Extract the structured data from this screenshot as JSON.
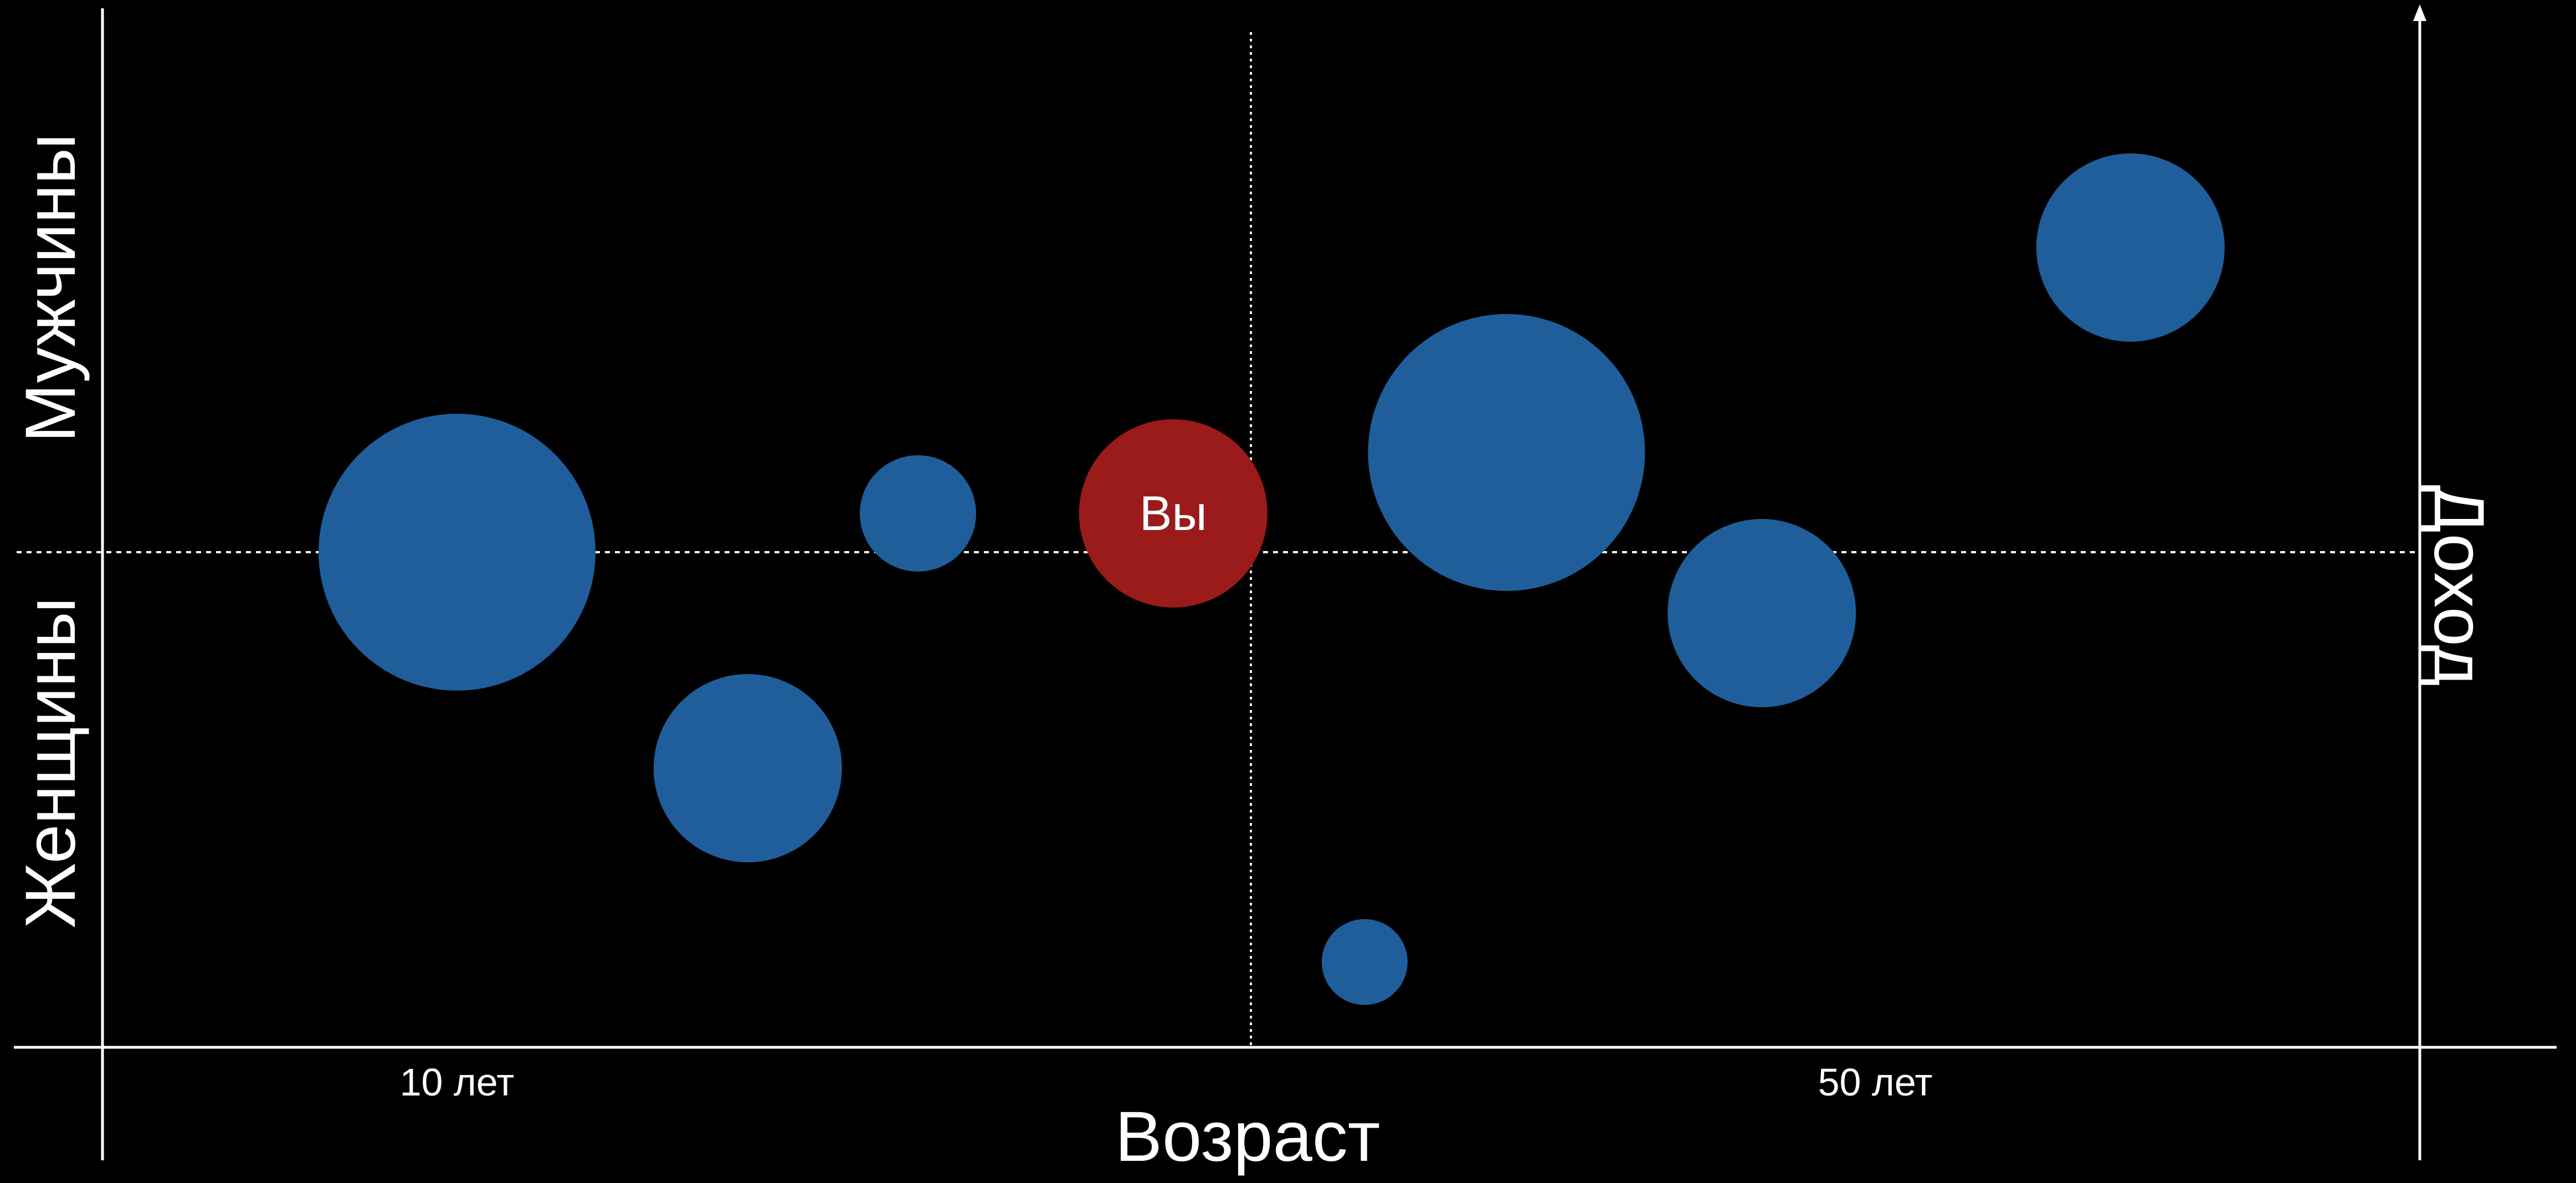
{
  "chart_data": {
    "type": "scatter",
    "title": "",
    "xlabel": "Возраст",
    "ylabel": "Доход",
    "left_upper_label": "Мужчины",
    "left_lower_label": "Женщины",
    "x_ticks": [
      {
        "value": 10,
        "label": "10 лет"
      },
      {
        "value": 50,
        "label": "50 лет"
      }
    ],
    "xlim": [
      0,
      54.5
    ],
    "points": [
      {
        "x": 10.0,
        "y": 0.0,
        "size": 1.0,
        "color": "#1f5e9a",
        "label": ""
      },
      {
        "x": 18.2,
        "y": -0.39,
        "size": 0.68,
        "color": "#1f5e9a",
        "label": ""
      },
      {
        "x": 23.0,
        "y": 0.07,
        "size": 0.42,
        "color": "#1f5e9a",
        "label": ""
      },
      {
        "x": 30.2,
        "y": 0.07,
        "size": 0.68,
        "color": "#9b1a1a",
        "label": "Вы"
      },
      {
        "x": 35.6,
        "y": -0.74,
        "size": 0.31,
        "color": "#1f5e9a",
        "label": ""
      },
      {
        "x": 39.6,
        "y": 0.18,
        "size": 1.0,
        "color": "#1f5e9a",
        "label": ""
      },
      {
        "x": 46.8,
        "y": -0.11,
        "size": 0.68,
        "color": "#1f5e9a",
        "label": ""
      },
      {
        "x": 57.2,
        "y": 0.55,
        "size": 0.68,
        "color": "#1f5e9a",
        "label": ""
      }
    ],
    "grid": false
  }
}
